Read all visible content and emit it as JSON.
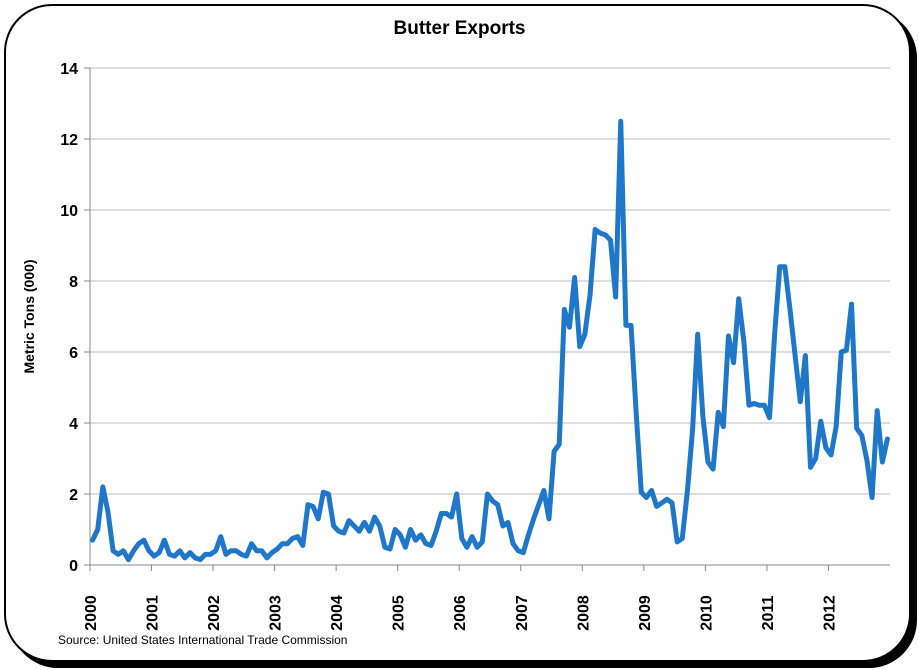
{
  "chart_data": {
    "type": "line",
    "title": "Butter Exports",
    "ylabel": "Metric Tons (000)",
    "xlabel": "",
    "source": "Source: United States International Trade Commission",
    "ylim": [
      0,
      14
    ],
    "yticks": [
      0,
      2,
      4,
      6,
      8,
      10,
      12,
      14
    ],
    "xticks": [
      "2000",
      "2001",
      "2002",
      "2003",
      "2004",
      "2005",
      "2006",
      "2007",
      "2008",
      "2009",
      "2010",
      "2011",
      "2012"
    ],
    "grid": true,
    "legend": "none",
    "color": "#1f77c9",
    "series": [
      {
        "start_year": 2000,
        "frequency": "monthly",
        "values": [
          0.7,
          1.0,
          2.2,
          1.5,
          0.4,
          0.3,
          0.4,
          0.15,
          0.4,
          0.6,
          0.7,
          0.4,
          0.25,
          0.35,
          0.7,
          0.3,
          0.25,
          0.4,
          0.2,
          0.35,
          0.2,
          0.15,
          0.3,
          0.3,
          0.4,
          0.8,
          0.3,
          0.4,
          0.4,
          0.3,
          0.25,
          0.6,
          0.4,
          0.4,
          0.2,
          0.35,
          0.45,
          0.6,
          0.6,
          0.75,
          0.8,
          0.55,
          1.7,
          1.65,
          1.3,
          2.05,
          2.0,
          1.1,
          0.95,
          0.9,
          1.25,
          1.1,
          0.95,
          1.2,
          0.95,
          1.35,
          1.1,
          0.5,
          0.45,
          1.0,
          0.85,
          0.5,
          1.0,
          0.7,
          0.85,
          0.6,
          0.55,
          0.95,
          1.45,
          1.45,
          1.35,
          2.0,
          0.75,
          0.5,
          0.8,
          0.5,
          0.65,
          2.0,
          1.8,
          1.7,
          1.1,
          1.2,
          0.6,
          0.4,
          0.35,
          0.85,
          1.3,
          1.7,
          2.1,
          1.3,
          3.2,
          3.4,
          7.2,
          6.7,
          8.1,
          6.15,
          6.5,
          7.6,
          9.45,
          9.35,
          9.3,
          9.15,
          7.55,
          12.5,
          6.75,
          6.75,
          4.3,
          2.05,
          1.9,
          2.1,
          1.65,
          1.75,
          1.85,
          1.75,
          0.65,
          0.75,
          2.1,
          3.8,
          6.5,
          4.2,
          2.9,
          2.7,
          4.3,
          3.9,
          6.45,
          5.7,
          7.5,
          6.3,
          4.5,
          4.55,
          4.5,
          4.5,
          4.15,
          6.5,
          8.4,
          8.4,
          7.2,
          5.9,
          4.6,
          5.9,
          2.75,
          3.0,
          4.05,
          3.3,
          3.1,
          3.9,
          6.0,
          6.05,
          7.35,
          3.85,
          3.65,
          2.95,
          1.9,
          4.35,
          2.9,
          3.55
        ]
      }
    ]
  }
}
